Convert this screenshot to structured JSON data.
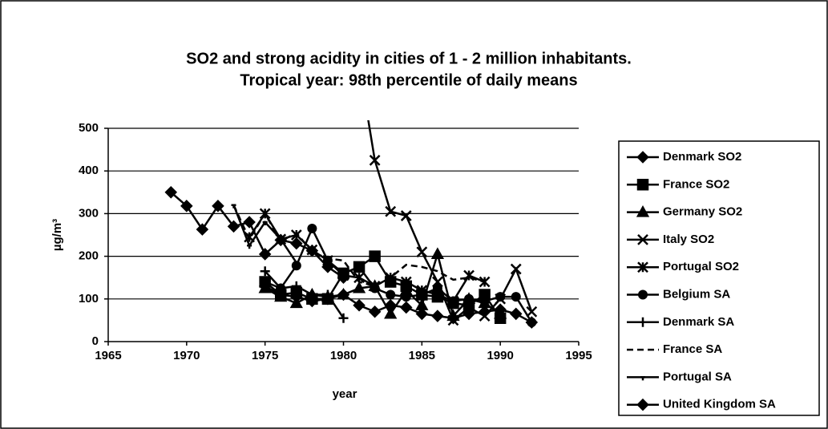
{
  "chart_data": {
    "type": "line",
    "title": "SO2 and strong acidity in cities of 1 - 2 million inhabitants.",
    "subtitle": "Tropical year: 98th percentile of daily means",
    "xlabel": "year",
    "ylabel": "µg/m³",
    "x": [
      1969,
      1970,
      1971,
      1972,
      1973,
      1974,
      1975,
      1976,
      1977,
      1978,
      1979,
      1980,
      1981,
      1982,
      1983,
      1984,
      1985,
      1986,
      1987,
      1988,
      1989,
      1990,
      1991,
      1992
    ],
    "xlim": [
      1965,
      1995
    ],
    "xticks": [
      1965,
      1970,
      1975,
      1980,
      1985,
      1990,
      1995
    ],
    "ylim": [
      0,
      500
    ],
    "yticks": [
      0,
      100,
      200,
      300,
      400,
      500
    ],
    "grid": true,
    "legend": "right",
    "series": [
      {
        "name": "Denmark SO2",
        "color": "#000000",
        "marker": "diamond",
        "values": [
          350,
          318,
          263,
          318,
          270,
          280,
          205,
          238,
          230,
          213,
          175,
          150,
          null,
          null,
          null,
          null,
          null,
          null,
          null,
          null,
          null,
          null,
          null,
          null
        ]
      },
      {
        "name": "France SO2",
        "color": "#000000",
        "marker": "square",
        "values": [
          null,
          null,
          null,
          null,
          null,
          null,
          140,
          110,
          115,
          100,
          100,
          160,
          175,
          200,
          140,
          130,
          110,
          105,
          90,
          85,
          110,
          55,
          null,
          null
        ]
      },
      {
        "name": "Germany SO2",
        "color": "#000000",
        "marker": "triangle",
        "values": [
          null,
          null,
          null,
          null,
          null,
          null,
          125,
          105,
          90,
          110,
          105,
          110,
          125,
          130,
          65,
          120,
          85,
          205,
          60,
          100,
          90,
          65,
          null,
          null
        ]
      },
      {
        "name": "Italy SO2",
        "color": "#000000",
        "marker": "x",
        "values": [
          null,
          null,
          null,
          null,
          null,
          null,
          null,
          null,
          null,
          null,
          null,
          null,
          650,
          425,
          305,
          295,
          210,
          140,
          50,
          80,
          60,
          100,
          170,
          70
        ]
      },
      {
        "name": "Portugal SO2",
        "color": "#000000",
        "marker": "asterisk",
        "values": [
          null,
          null,
          null,
          null,
          null,
          245,
          300,
          240,
          250,
          215,
          190,
          155,
          150,
          130,
          150,
          140,
          120,
          110,
          95,
          155,
          140,
          null,
          null,
          null
        ]
      },
      {
        "name": "Belgium SA",
        "color": "#000000",
        "marker": "circle",
        "values": [
          null,
          null,
          null,
          null,
          null,
          null,
          140,
          125,
          178,
          265,
          190,
          160,
          175,
          125,
          110,
          105,
          110,
          125,
          95,
          100,
          95,
          105,
          105,
          45
        ]
      },
      {
        "name": "Denmark SA",
        "color": "#000000",
        "marker": "plus",
        "values": [
          null,
          null,
          null,
          null,
          null,
          null,
          165,
          125,
          130,
          110,
          110,
          55,
          null,
          null,
          null,
          null,
          null,
          null,
          null,
          null,
          null,
          null,
          null,
          null
        ]
      },
      {
        "name": "France SA",
        "color": "#000000",
        "marker": "none",
        "dash": true,
        "values": [
          null,
          null,
          null,
          null,
          320,
          240,
          300,
          235,
          255,
          210,
          195,
          190,
          140,
          130,
          150,
          180,
          175,
          165,
          145,
          150,
          140,
          null,
          null,
          null
        ]
      },
      {
        "name": "Portugal SA",
        "color": "#000000",
        "marker": "dash",
        "values": [
          null,
          null,
          null,
          null,
          320,
          225,
          280,
          240,
          185,
          null,
          null,
          null,
          null,
          null,
          null,
          null,
          null,
          null,
          null,
          null,
          null,
          null,
          null,
          null
        ]
      },
      {
        "name": "United Kingdom SA",
        "color": "#000000",
        "marker": "diamond",
        "values": [
          null,
          null,
          null,
          null,
          null,
          null,
          130,
          110,
          105,
          95,
          100,
          110,
          85,
          70,
          85,
          80,
          65,
          60,
          55,
          65,
          70,
          75,
          65,
          45
        ]
      }
    ]
  }
}
